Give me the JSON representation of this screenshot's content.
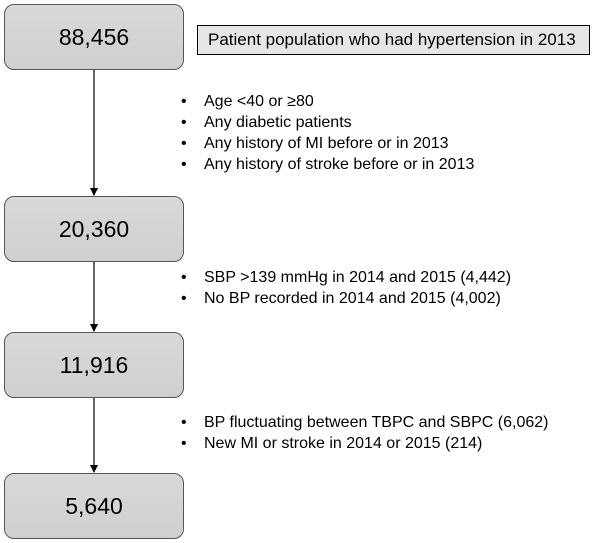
{
  "flow": {
    "steps": [
      {
        "value": "88,456"
      },
      {
        "value": "20,360"
      },
      {
        "value": "11,916"
      },
      {
        "value": "5,640"
      }
    ],
    "initial_label": "Patient population who had hypertension in 2013",
    "exclusions": [
      {
        "items": [
          "Age <40 or  ≥80",
          "Any diabetic patients",
          "Any history of MI before or in 2013",
          "Any history of stroke before or in 2013"
        ]
      },
      {
        "items": [
          "SBP >139 mmHg in 2014 and 2015 (4,442)",
          "No BP recorded in 2014 and 2015 (4,002)"
        ]
      },
      {
        "items": [
          "BP fluctuating between TBPC and SBPC (6,062)",
          "New MI or stroke in 2014 or 2015 (214)"
        ]
      }
    ]
  },
  "colors": {
    "box_fill": "#d9d9d9",
    "box_border": "#555555",
    "label_fill": "#e6e6e6",
    "arrow": "#000000"
  }
}
